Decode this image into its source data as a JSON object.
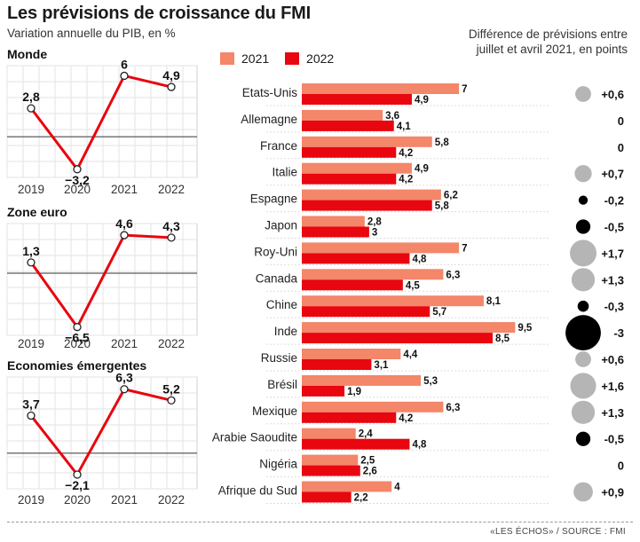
{
  "title": "Les prévisions de croissance du FMI",
  "subtitle": "Variation annuelle du PIB, en %",
  "diff_title": "Différence de prévisions entre juillet et avril 2021, en points",
  "source": "«LES ÉCHOS» / SOURCE : FMI",
  "colors": {
    "c2021": "#f4866a",
    "c2022": "#e8060f",
    "line": "#e8060f",
    "bubble_pos": "#b5b5b5",
    "bubble_neg": "#000000"
  },
  "chart_data": [
    {
      "type": "line",
      "title": "Monde",
      "x": [
        "2019",
        "2020",
        "2021",
        "2022"
      ],
      "values": [
        2.8,
        -3.2,
        6,
        4.9
      ],
      "labels": [
        "2,8",
        "−3,2",
        "6",
        "4,9"
      ],
      "ylim": [
        -4,
        7
      ]
    },
    {
      "type": "line",
      "title": "Zone euro",
      "x": [
        "2019",
        "2020",
        "2021",
        "2022"
      ],
      "values": [
        1.3,
        -6.5,
        4.6,
        4.3
      ],
      "labels": [
        "1,3",
        "−6,5",
        "4,6",
        "4,3"
      ],
      "ylim": [
        -7.5,
        6
      ]
    },
    {
      "type": "line",
      "title": "Economies émergentes",
      "x": [
        "2019",
        "2020",
        "2021",
        "2022"
      ],
      "values": [
        3.7,
        -2.1,
        6.3,
        5.2
      ],
      "labels": [
        "3,7",
        "−2,1",
        "6,3",
        "5,2"
      ],
      "ylim": [
        -3.5,
        7.5
      ]
    },
    {
      "type": "bar",
      "orientation": "horizontal",
      "categories": [
        "Etats-Unis",
        "Allemagne",
        "France",
        "Italie",
        "Espagne",
        "Japon",
        "Roy-Uni",
        "Canada",
        "Chine",
        "Inde",
        "Russie",
        "Brésil",
        "Mexique",
        "Arabie Saoudite",
        "Nigéria",
        "Afrique du Sud"
      ],
      "series": [
        {
          "name": "2021",
          "values": [
            7,
            3.6,
            5.8,
            4.9,
            6.2,
            2.8,
            7,
            6.3,
            8.1,
            9.5,
            4.4,
            5.3,
            6.3,
            2.4,
            2.5,
            4
          ],
          "labels": [
            "7",
            "3,6",
            "5,8",
            "4,9",
            "6,2",
            "2,8",
            "7",
            "6,3",
            "8,1",
            "9,5",
            "4,4",
            "5,3",
            "6,3",
            "2,4",
            "2,5",
            "4"
          ]
        },
        {
          "name": "2022",
          "values": [
            4.9,
            4.1,
            4.2,
            4.2,
            5.8,
            3,
            4.8,
            4.5,
            5.7,
            8.5,
            3.1,
            1.9,
            4.2,
            4.8,
            2.6,
            2.2
          ],
          "labels": [
            "4,9",
            "4,1",
            "4,2",
            "4,2",
            "5,8",
            "3",
            "4,8",
            "4,5",
            "5,7",
            "8,5",
            "3,1",
            "1,9",
            "4,2",
            "4,8",
            "2,6",
            "2,2"
          ]
        }
      ]
    },
    {
      "type": "scatter",
      "encoding": "bubble",
      "categories": [
        "Etats-Unis",
        "Allemagne",
        "France",
        "Italie",
        "Espagne",
        "Japon",
        "Roy-Uni",
        "Canada",
        "Chine",
        "Inde",
        "Russie",
        "Brésil",
        "Mexique",
        "Arabie Saoudite",
        "Nigéria",
        "Afrique du Sud"
      ],
      "values": [
        0.6,
        0,
        0,
        0.7,
        -0.2,
        -0.5,
        1.7,
        1.3,
        -0.3,
        -3,
        0.6,
        1.6,
        1.3,
        -0.5,
        0,
        0.9
      ],
      "labels": [
        "+0,6",
        "0",
        "0",
        "+0,7",
        "-0,2",
        "-0,5",
        "+1,7",
        "+1,3",
        "-0,3",
        "-3",
        "+0,6",
        "+1,6",
        "+1,3",
        "-0,5",
        "0",
        "+0,9"
      ]
    }
  ]
}
